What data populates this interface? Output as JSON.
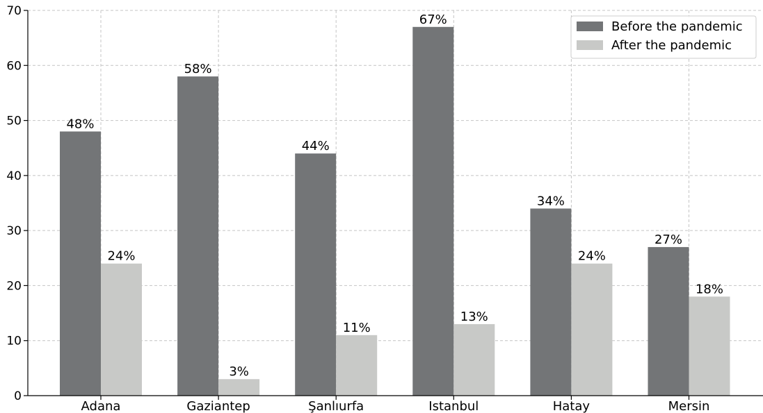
{
  "chart_data": {
    "type": "bar",
    "categories": [
      "Adana",
      "Gaziantep",
      "Şanlıurfa",
      "Istanbul",
      "Hatay",
      "Mersin"
    ],
    "series": [
      {
        "name": "Before the pandemic",
        "values": [
          48,
          58,
          44,
          67,
          34,
          27
        ],
        "labels": [
          "48%",
          "58%",
          "44%",
          "67%",
          "34%",
          "27%"
        ],
        "color": "#737577"
      },
      {
        "name": "After the pandemic",
        "values": [
          24,
          3,
          11,
          13,
          24,
          18
        ],
        "labels": [
          "24%",
          "3%",
          "11%",
          "13%",
          "24%",
          "18%"
        ],
        "color": "#c8c9c7"
      }
    ],
    "ylim": [
      0,
      70
    ],
    "yticks": [
      "0",
      "10",
      "20",
      "30",
      "40",
      "50",
      "60",
      "70"
    ],
    "grid": true,
    "legend_position": "top-right"
  }
}
